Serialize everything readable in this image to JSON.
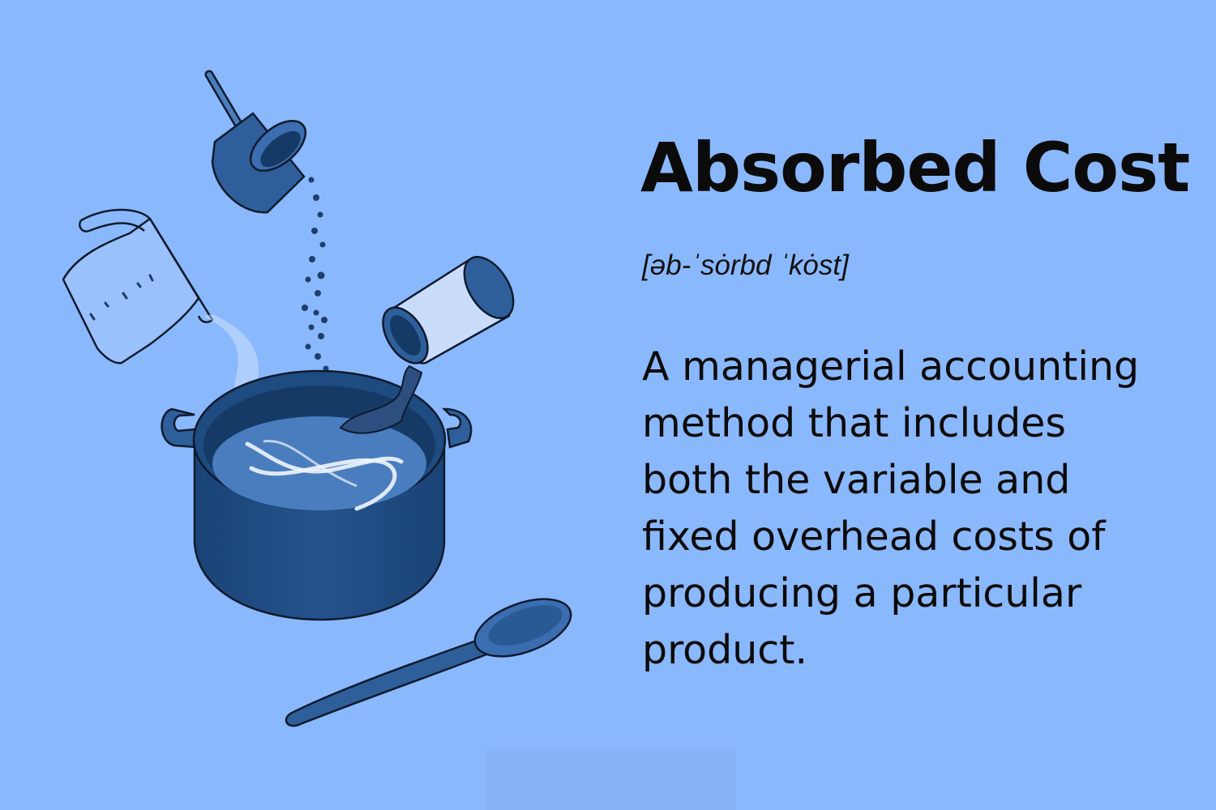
{
  "term": {
    "title": "Absorbed Cost",
    "pronunciation": "[əb-ˈsȯrbd ˈkȯst]",
    "definition": "A managerial accounting method that includes both the variable and fixed overhead costs of producing a particular product."
  },
  "colors": {
    "background": "#8ab8fc",
    "pot_dark": "#1e4b80",
    "pot_mid": "#2f5f9a",
    "liquid": "#4a7dbd",
    "outline": "#0e1a2e",
    "can_light": "#c9ddfb",
    "text": "#0b0b0b"
  },
  "illustration": {
    "icons": [
      "cooking-pot-icon",
      "measuring-cup-icon",
      "measuring-pitcher-icon",
      "spice-can-icon",
      "wooden-spoon-icon"
    ]
  }
}
